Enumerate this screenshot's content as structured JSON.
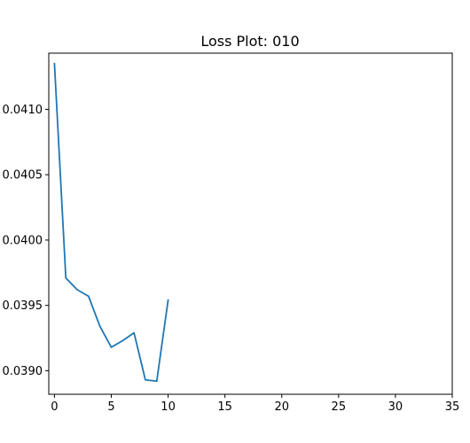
{
  "chart_data": {
    "type": "line",
    "title": "Loss Plot: 010",
    "xlabel": "",
    "ylabel": "",
    "xlim": [
      -0.5,
      35
    ],
    "ylim": [
      0.03882,
      0.04143
    ],
    "x_ticks": [
      0,
      5,
      10,
      15,
      20,
      25,
      30,
      35
    ],
    "x_tick_labels": [
      "0",
      "5",
      "10",
      "15",
      "20",
      "25",
      "30",
      "35"
    ],
    "y_ticks": [
      0.039,
      0.0395,
      0.04,
      0.0405,
      0.041
    ],
    "y_tick_labels": [
      "0.0390",
      "0.0395",
      "0.0400",
      "0.0405",
      "0.0410"
    ],
    "grid": false,
    "series": [
      {
        "color": "#1f77b4",
        "x": [
          0,
          1,
          2,
          3,
          4,
          5,
          6,
          7,
          8,
          9,
          10
        ],
        "y": [
          0.04135,
          0.03971,
          0.03962,
          0.03957,
          0.03934,
          0.03918,
          0.03923,
          0.03929,
          0.03893,
          0.03892,
          0.03954
        ]
      }
    ]
  }
}
